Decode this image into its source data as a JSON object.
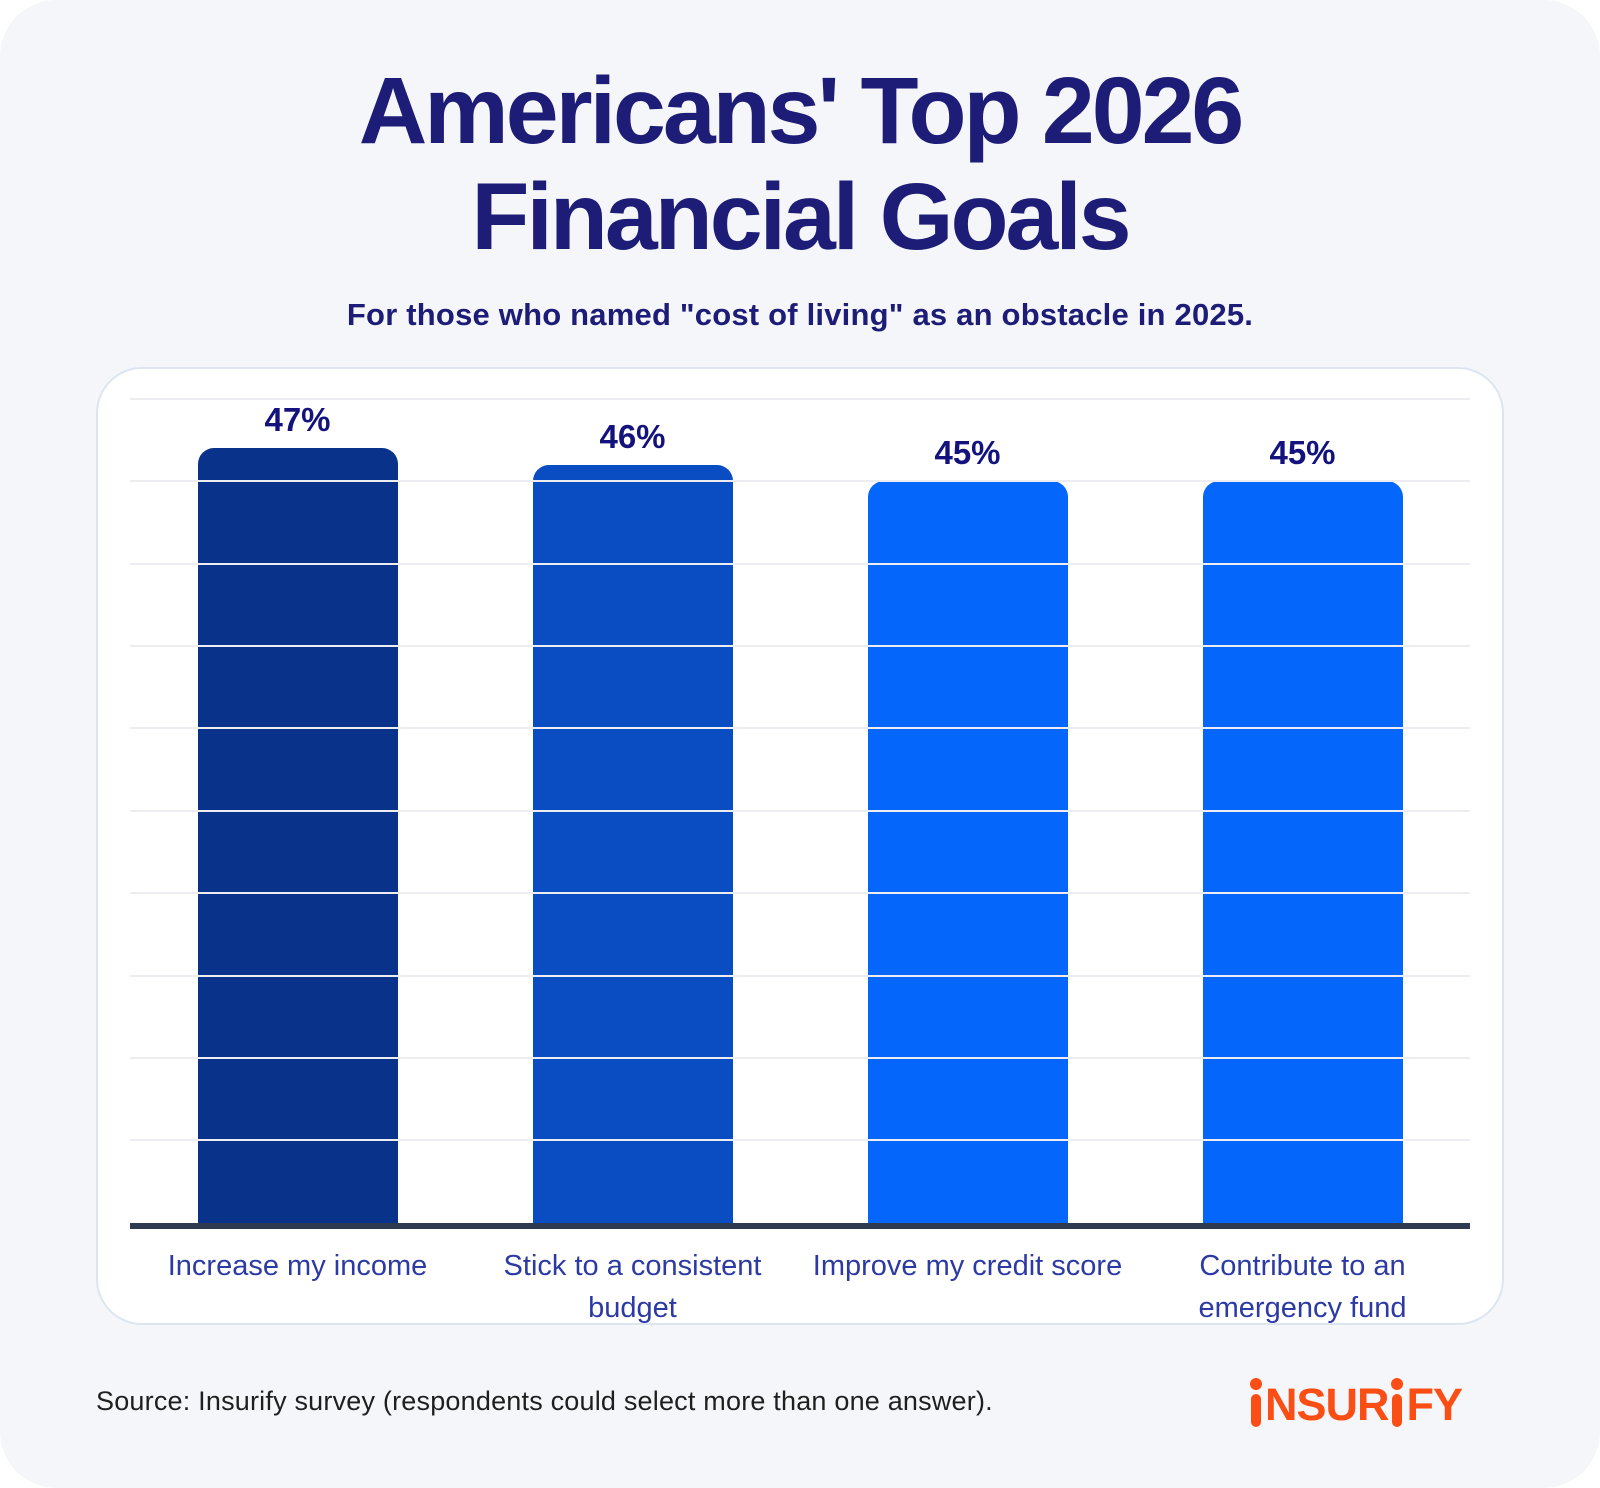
{
  "header": {
    "title_line1": "Americans' Top 2026",
    "title_line2": "Financial Goals",
    "subtitle": "For those who named \"cost of living\" as an obstacle in 2025."
  },
  "chart_data": {
    "type": "bar",
    "title": "Americans' Top 2026 Financial Goals",
    "subtitle": "For those who named \"cost of living\" as an obstacle in 2025.",
    "categories": [
      "Increase my income",
      "Stick to a consistent budget",
      "Improve my credit score",
      "Contribute to an emergency fund"
    ],
    "values": [
      47,
      46,
      45,
      45
    ],
    "value_labels": [
      "47%",
      "46%",
      "45%",
      "45%"
    ],
    "bar_colors": [
      "#09338b",
      "#0a4dc3",
      "#0566fb",
      "#0566fb"
    ],
    "xlabel": "",
    "ylabel": "",
    "ylim": [
      0,
      50
    ],
    "grid_step": 5,
    "grid": "horizontal",
    "legend": "none"
  },
  "footer": {
    "source": "Source: Insurify survey (respondents could select more than one answer).",
    "logo": {
      "text": "insurify",
      "color": "#fb4e14"
    }
  },
  "colors": {
    "canvas_background": "#f4f6fa",
    "card_background": "#ffffff",
    "card_border": "#dde5f1",
    "gridline": "#ececf1",
    "axis": "#2e3a52",
    "title_text": "#1d1c77",
    "value_label_text": "#14137e",
    "category_label_text": "#2c3aa4",
    "source_text": "#1f1f1f",
    "brand_orange": "#fb4e14"
  }
}
